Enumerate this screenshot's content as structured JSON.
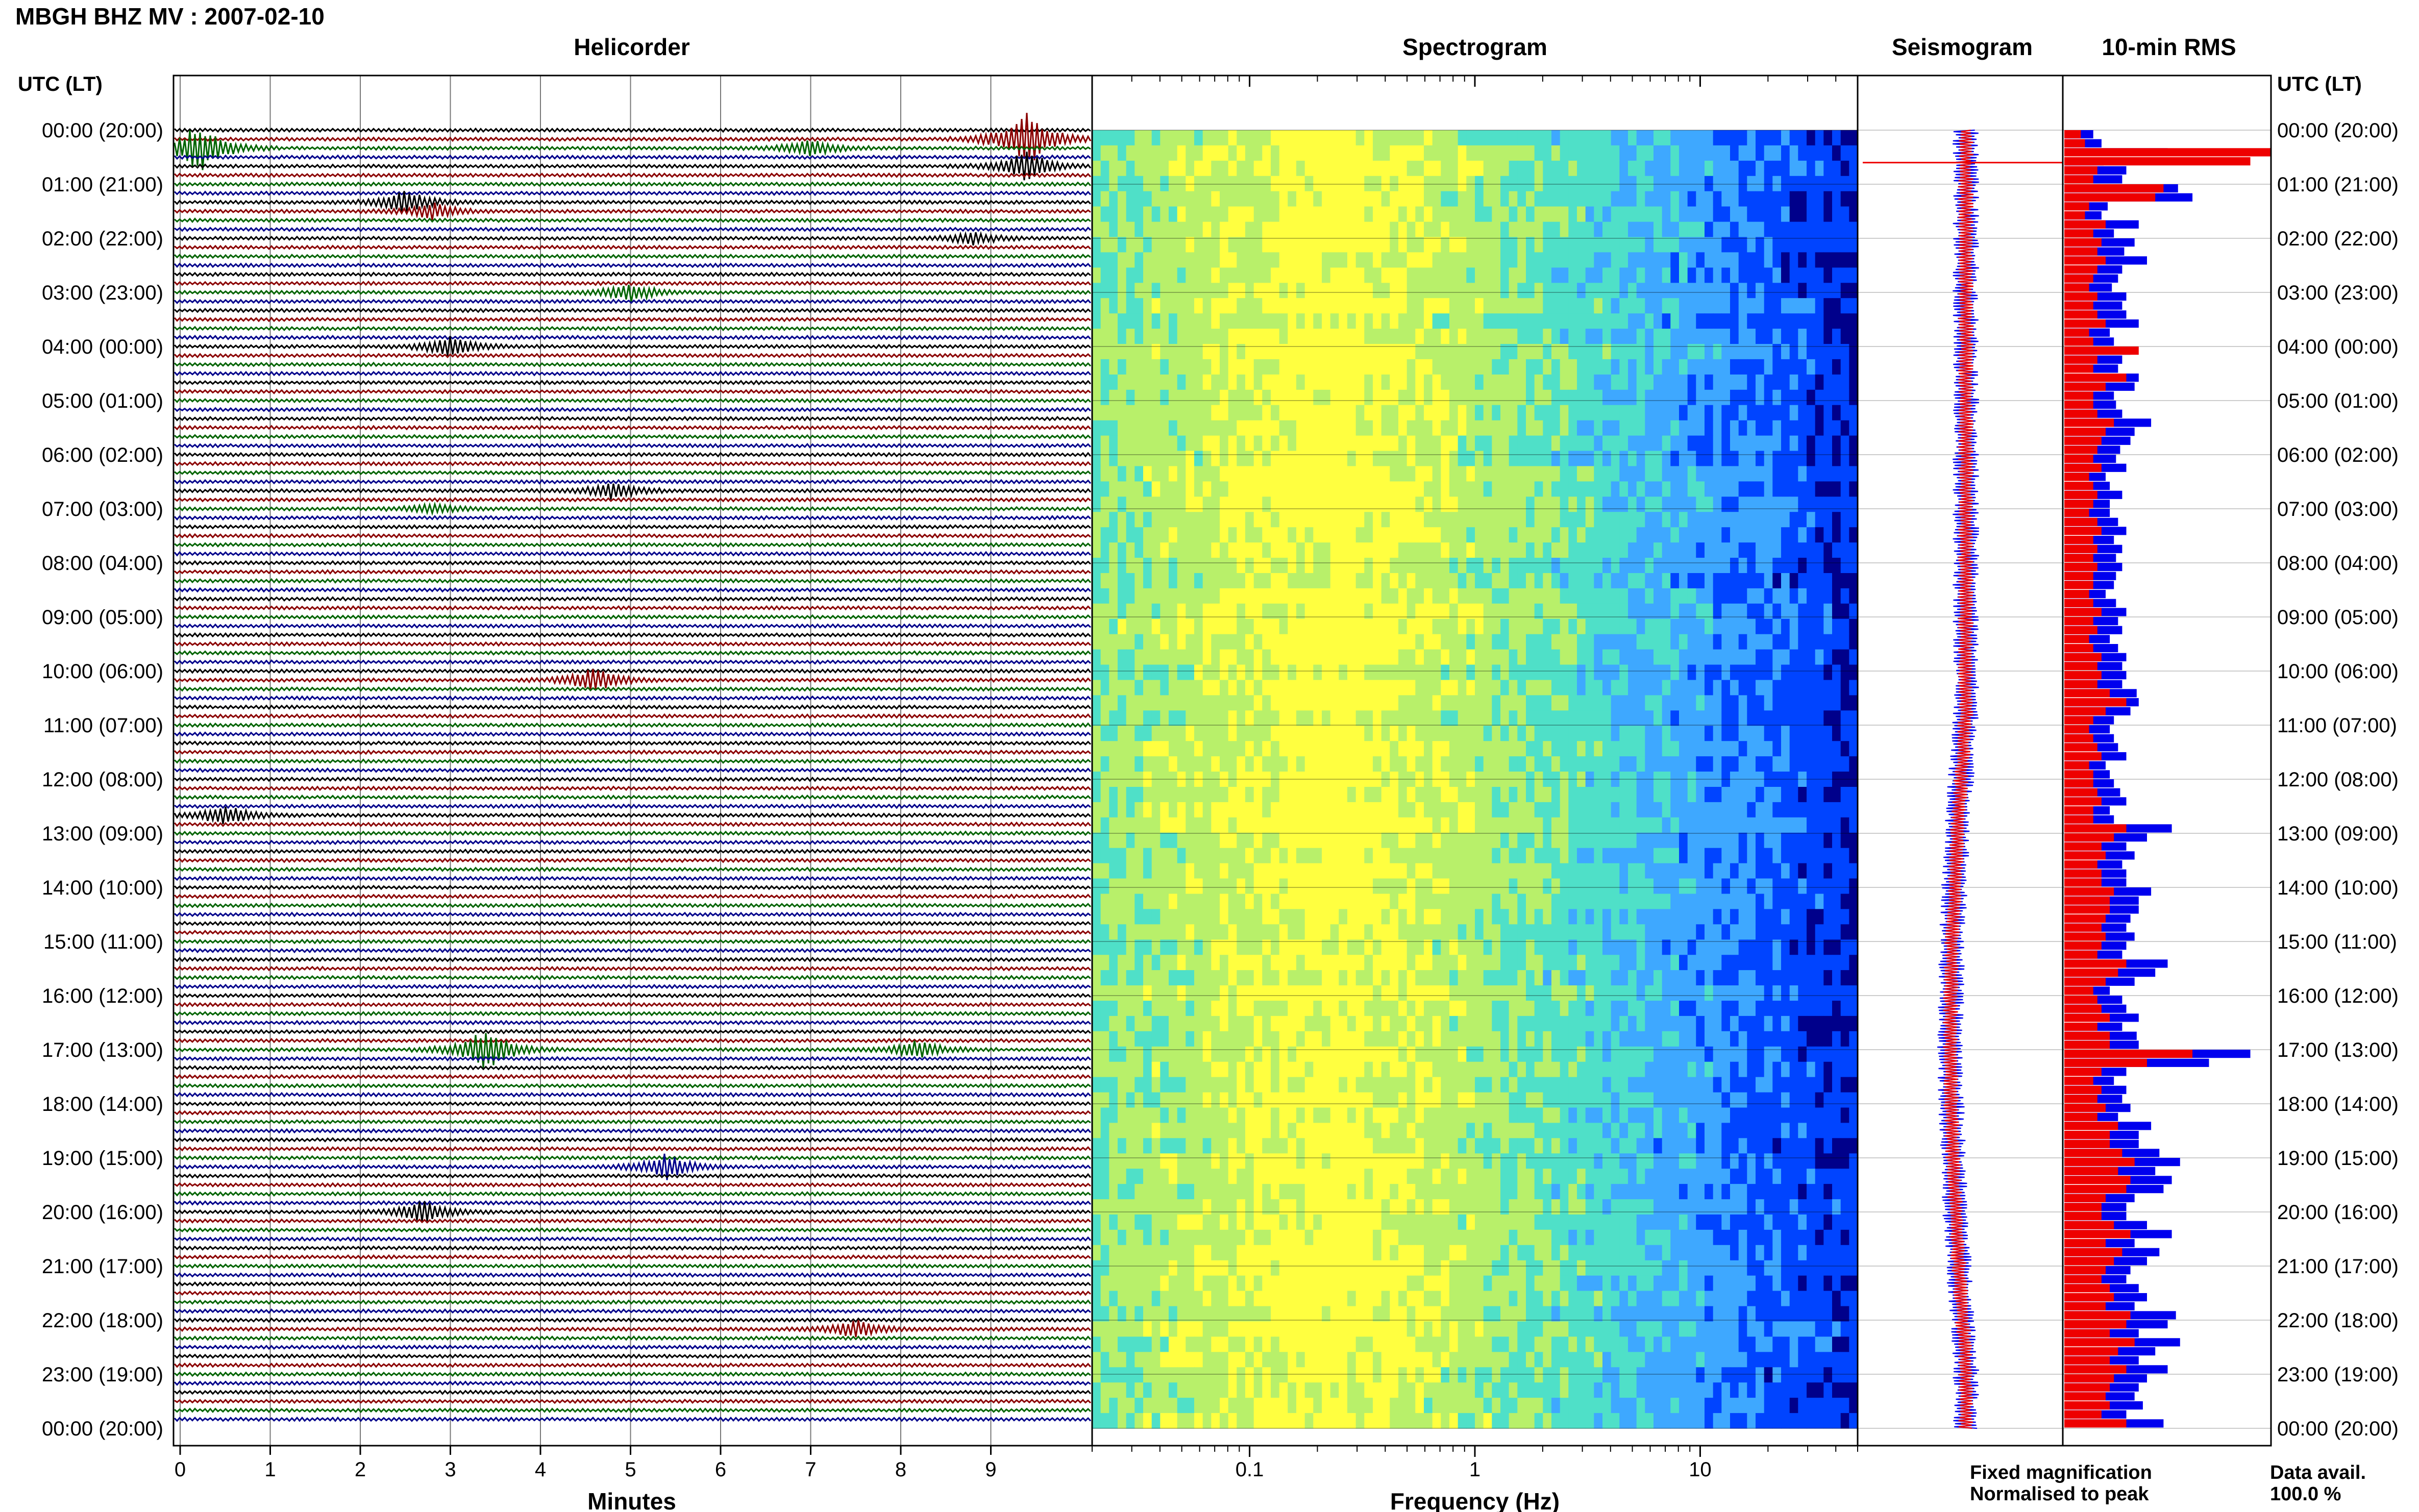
{
  "header": {
    "station_title": "MBGH BHZ MV : 2007-02-10",
    "panel_titles": {
      "helicorder": "Helicorder",
      "spectrogram": "Spectrogram",
      "seismogram": "Seismogram",
      "rms": "10-min RMS"
    },
    "time_axis_header_left": "UTC (LT)",
    "time_axis_header_right": "UTC (LT)"
  },
  "time_labels": [
    "00:00 (20:00)",
    "01:00 (21:00)",
    "02:00 (22:00)",
    "03:00 (23:00)",
    "04:00 (00:00)",
    "05:00 (01:00)",
    "06:00 (02:00)",
    "07:00 (03:00)",
    "08:00 (04:00)",
    "09:00 (05:00)",
    "10:00 (06:00)",
    "11:00 (07:00)",
    "12:00 (08:00)",
    "13:00 (09:00)",
    "14:00 (10:00)",
    "15:00 (11:00)",
    "16:00 (12:00)",
    "17:00 (13:00)",
    "18:00 (14:00)",
    "19:00 (15:00)",
    "20:00 (16:00)",
    "21:00 (17:00)",
    "22:00 (18:00)",
    "23:00 (19:00)",
    "00:00 (20:00)"
  ],
  "footer": {
    "helicorder_xlabel": "Minutes",
    "spectrogram_xlabel": "Frequency (Hz)",
    "legend_fixed": "Fixed magnification",
    "legend_normalised": "Normalised to peak",
    "data_avail_label": "Data avail.",
    "data_avail_value": "100.0 %"
  },
  "colors": {
    "trace_cycle": [
      "#000000",
      "#8b0000",
      "#006400",
      "#00008b"
    ],
    "fixed_magnification": "#0000ee",
    "normalised_to_peak": "#ee0000",
    "grid": "#777777"
  },
  "chart_data": [
    {
      "type": "line",
      "name": "helicorder",
      "title": "Helicorder",
      "xlabel": "Minutes",
      "x_ticks": [
        0,
        1,
        2,
        3,
        4,
        5,
        6,
        7,
        8,
        9
      ],
      "xlim": [
        0,
        10
      ],
      "rows_per_hour": 6,
      "row_count": 144,
      "y_labels_ref": "time_labels",
      "events": [
        {
          "row": 1,
          "minute": 9.4,
          "amp": 3.0,
          "color_index": 2
        },
        {
          "row": 2,
          "minute": 0.2,
          "amp": 2.6,
          "color_index": 0
        },
        {
          "row": 2,
          "minute": 7.0,
          "amp": 0.8,
          "color_index": 0
        },
        {
          "row": 4,
          "minute": 9.4,
          "amp": 1.5,
          "color_index": 2
        },
        {
          "row": 8,
          "minute": 2.5,
          "amp": 1.2,
          "color_index": 1
        },
        {
          "row": 9,
          "minute": 2.8,
          "amp": 0.8,
          "color_index": 2
        },
        {
          "row": 12,
          "minute": 8.8,
          "amp": 0.6,
          "color_index": 1
        },
        {
          "row": 18,
          "minute": 5.0,
          "amp": 0.9,
          "color_index": 1
        },
        {
          "row": 24,
          "minute": 3.0,
          "amp": 1.0,
          "color_index": 0
        },
        {
          "row": 40,
          "minute": 4.8,
          "amp": 0.9,
          "color_index": 2
        },
        {
          "row": 42,
          "minute": 2.8,
          "amp": 0.5,
          "color_index": 1
        },
        {
          "row": 61,
          "minute": 4.6,
          "amp": 1.2,
          "color_index": 2
        },
        {
          "row": 76,
          "minute": 0.5,
          "amp": 1.0,
          "color_index": 2
        },
        {
          "row": 102,
          "minute": 3.4,
          "amp": 2.2,
          "color_index": 0
        },
        {
          "row": 102,
          "minute": 8.2,
          "amp": 0.9,
          "color_index": 0
        },
        {
          "row": 115,
          "minute": 5.4,
          "amp": 1.3,
          "color_index": 2
        },
        {
          "row": 120,
          "minute": 2.7,
          "amp": 1.1,
          "color_index": 0
        },
        {
          "row": 133,
          "minute": 7.5,
          "amp": 0.9,
          "color_index": 1
        }
      ]
    },
    {
      "type": "heatmap",
      "name": "spectrogram",
      "title": "Spectrogram",
      "xlabel": "Frequency (Hz)",
      "x_scale": "log",
      "xlim": [
        0.02,
        50
      ],
      "x_ticks": [
        0.1,
        1,
        10
      ],
      "y_labels_ref": "time_labels",
      "colormap": [
        "#00008b",
        "#0044ff",
        "#3ea8ff",
        "#4fe0c8",
        "#b8f06a",
        "#ffff40"
      ],
      "peak_frequency_hz": 0.25
    },
    {
      "type": "line",
      "name": "seismogram",
      "title": "Seismogram",
      "series": [
        {
          "name": "Fixed magnification",
          "color": "#0000ee"
        },
        {
          "name": "Normalised to peak",
          "color": "#ee0000"
        }
      ],
      "y_labels_ref": "time_labels"
    },
    {
      "type": "bar",
      "name": "rms",
      "title": "10-min RMS",
      "orientation": "horizontal",
      "bin_minutes": 10,
      "categories_ref": "time_labels",
      "series": [
        {
          "name": "Fixed magnification",
          "color": "#0000ee",
          "values": [
            0.14,
            0.18,
            0.5,
            0.19,
            0.3,
            0.28,
            0.55,
            0.62,
            0.21,
            0.18,
            0.36,
            0.24,
            0.34,
            0.29,
            0.4,
            0.28,
            0.26,
            0.23,
            0.3,
            0.28,
            0.3,
            0.36,
            0.22,
            0.24,
            0.32,
            0.28,
            0.26,
            0.36,
            0.34,
            0.24,
            0.25,
            0.28,
            0.42,
            0.34,
            0.32,
            0.27,
            0.25,
            0.3,
            0.2,
            0.22,
            0.28,
            0.22,
            0.22,
            0.26,
            0.3,
            0.24,
            0.28,
            0.25,
            0.28,
            0.25,
            0.24,
            0.2,
            0.25,
            0.3,
            0.26,
            0.28,
            0.22,
            0.26,
            0.3,
            0.28,
            0.3,
            0.28,
            0.35,
            0.36,
            0.32,
            0.24,
            0.22,
            0.24,
            0.26,
            0.3,
            0.2,
            0.22,
            0.24,
            0.27,
            0.3,
            0.22,
            0.24,
            0.52,
            0.4,
            0.3,
            0.34,
            0.28,
            0.3,
            0.3,
            0.42,
            0.36,
            0.36,
            0.32,
            0.3,
            0.34,
            0.3,
            0.28,
            0.5,
            0.44,
            0.34,
            0.22,
            0.28,
            0.3,
            0.36,
            0.28,
            0.35,
            0.36,
            0.9,
            0.7,
            0.3,
            0.24,
            0.3,
            0.28,
            0.32,
            0.26,
            0.42,
            0.36,
            0.36,
            0.46,
            0.56,
            0.44,
            0.52,
            0.48,
            0.34,
            0.3,
            0.3,
            0.4,
            0.52,
            0.34,
            0.46,
            0.4,
            0.32,
            0.3,
            0.36,
            0.4,
            0.34,
            0.54,
            0.5,
            0.36,
            0.56,
            0.44,
            0.36,
            0.5,
            0.4,
            0.36,
            0.34,
            0.38,
            0.3,
            0.48
          ]
        },
        {
          "name": "Normalised to peak",
          "color": "#ee0000",
          "values": [
            0.08,
            0.1,
            1.0,
            0.9,
            0.16,
            0.14,
            0.48,
            0.44,
            0.12,
            0.1,
            0.2,
            0.14,
            0.18,
            0.16,
            0.2,
            0.16,
            0.14,
            0.12,
            0.16,
            0.14,
            0.16,
            0.2,
            0.12,
            0.14,
            0.36,
            0.16,
            0.14,
            0.3,
            0.2,
            0.14,
            0.14,
            0.16,
            0.24,
            0.2,
            0.18,
            0.16,
            0.14,
            0.18,
            0.12,
            0.14,
            0.16,
            0.14,
            0.12,
            0.16,
            0.18,
            0.14,
            0.16,
            0.14,
            0.16,
            0.14,
            0.14,
            0.12,
            0.14,
            0.18,
            0.14,
            0.16,
            0.12,
            0.14,
            0.18,
            0.16,
            0.18,
            0.16,
            0.22,
            0.3,
            0.2,
            0.14,
            0.12,
            0.14,
            0.16,
            0.18,
            0.12,
            0.14,
            0.14,
            0.16,
            0.18,
            0.14,
            0.14,
            0.3,
            0.24,
            0.18,
            0.2,
            0.16,
            0.18,
            0.18,
            0.24,
            0.22,
            0.22,
            0.2,
            0.18,
            0.2,
            0.18,
            0.16,
            0.3,
            0.26,
            0.2,
            0.14,
            0.16,
            0.18,
            0.22,
            0.16,
            0.22,
            0.22,
            0.62,
            0.4,
            0.18,
            0.14,
            0.18,
            0.16,
            0.2,
            0.16,
            0.26,
            0.22,
            0.22,
            0.28,
            0.34,
            0.26,
            0.32,
            0.3,
            0.2,
            0.18,
            0.18,
            0.24,
            0.32,
            0.2,
            0.28,
            0.24,
            0.2,
            0.18,
            0.22,
            0.24,
            0.2,
            0.32,
            0.3,
            0.22,
            0.34,
            0.26,
            0.22,
            0.3,
            0.24,
            0.22,
            0.2,
            0.22,
            0.18,
            0.3
          ]
        }
      ]
    }
  ]
}
